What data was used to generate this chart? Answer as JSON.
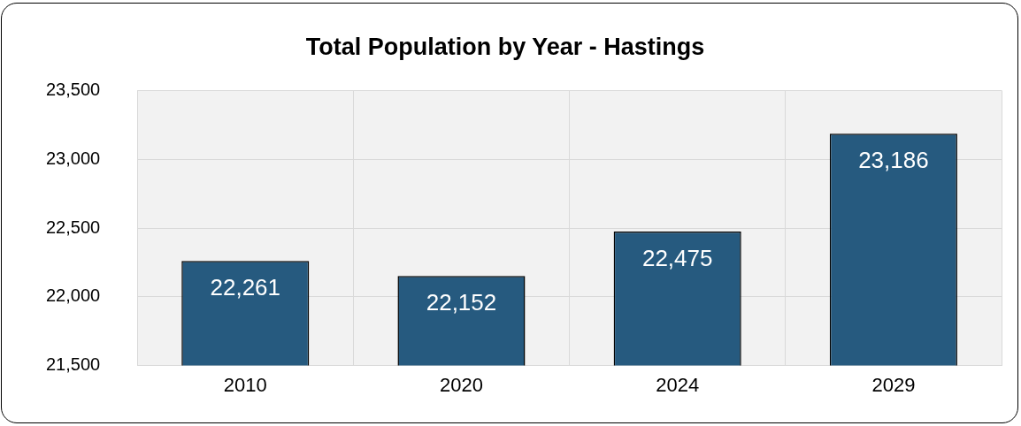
{
  "chart_data": {
    "type": "bar",
    "title": "Total Population by Year - Hastings",
    "categories": [
      "2010",
      "2020",
      "2024",
      "2029"
    ],
    "values": [
      22261,
      22152,
      22475,
      23186
    ],
    "color": "#265a7f",
    "value_labels": [
      "22,261",
      "22,152",
      "22,475",
      "23,186"
    ],
    "ylim": [
      21500,
      23500
    ],
    "yticks": [
      {
        "value": 21500,
        "label": "21,500"
      },
      {
        "value": 22000,
        "label": "22,000"
      },
      {
        "value": 22500,
        "label": "22,500"
      },
      {
        "value": 23000,
        "label": "23,000"
      },
      {
        "value": 23500,
        "label": "23,500"
      }
    ],
    "grid": true
  }
}
